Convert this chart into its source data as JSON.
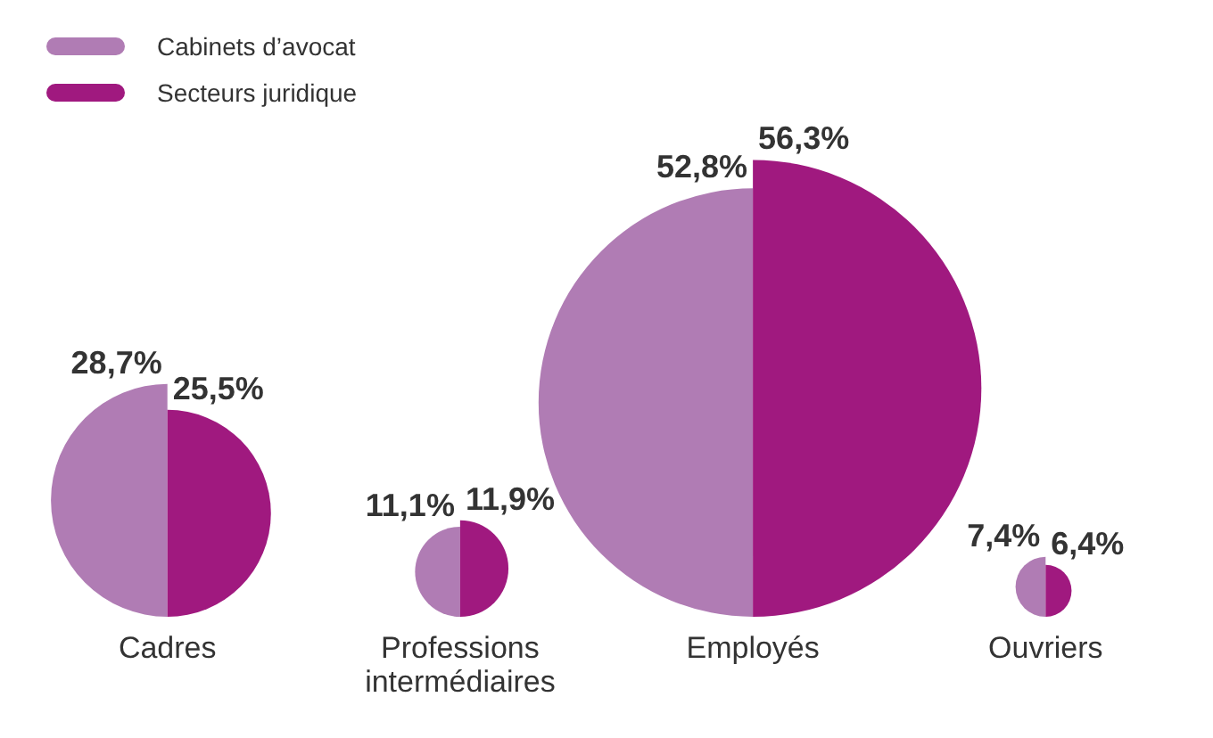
{
  "chart_data": {
    "type": "other",
    "categories": [
      "Cadres",
      "Professions intermédiaires",
      "Employés",
      "Ouvriers"
    ],
    "series": [
      {
        "name": "Cabinets d’avocat",
        "color": "#b07cb4",
        "values": [
          28.7,
          11.1,
          52.8,
          7.4
        ],
        "value_labels": [
          "28,7%",
          "11,1%",
          "52,8%",
          "7,4%"
        ]
      },
      {
        "name": "Secteurs juridique",
        "color": "#a0197f",
        "values": [
          25.5,
          11.9,
          56.3,
          6.4
        ],
        "value_labels": [
          "25,5%",
          "11,9%",
          "56,3%",
          "6,4%"
        ]
      }
    ],
    "legend": "top left"
  }
}
